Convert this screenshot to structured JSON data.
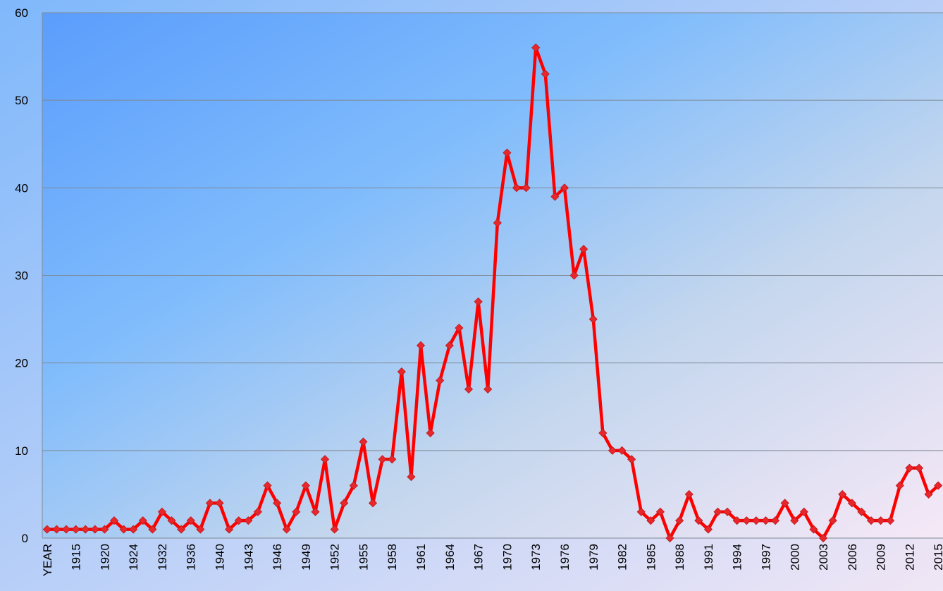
{
  "chart_data": {
    "type": "line",
    "categories": [
      "YEAR",
      null,
      null,
      "1915",
      null,
      null,
      "1920",
      null,
      null,
      "1924",
      null,
      null,
      "1932",
      null,
      null,
      "1936",
      null,
      null,
      "1940",
      null,
      null,
      "1943",
      null,
      null,
      "1946",
      null,
      null,
      "1949",
      null,
      null,
      "1952",
      null,
      null,
      "1955",
      null,
      null,
      "1958",
      null,
      null,
      "1961",
      null,
      null,
      "1964",
      null,
      null,
      "1967",
      null,
      null,
      "1970",
      null,
      null,
      "1973",
      null,
      null,
      "1976",
      null,
      null,
      "1979",
      null,
      null,
      "1982",
      null,
      null,
      "1985",
      null,
      null,
      "1988",
      null,
      null,
      "1991",
      null,
      null,
      "1994",
      null,
      null,
      "1997",
      null,
      null,
      "2000",
      null,
      null,
      "2003",
      null,
      null,
      "2006",
      null,
      null,
      "2009",
      null,
      null,
      "2012",
      null,
      null,
      "2015"
    ],
    "values": [
      1,
      1,
      1,
      1,
      1,
      1,
      1,
      2,
      1,
      1,
      2,
      1,
      3,
      2,
      1,
      2,
      1,
      4,
      4,
      1,
      2,
      2,
      3,
      6,
      4,
      1,
      3,
      6,
      3,
      9,
      1,
      4,
      6,
      11,
      4,
      9,
      9,
      19,
      7,
      22,
      12,
      18,
      22,
      24,
      17,
      27,
      17,
      36,
      44,
      40,
      40,
      56,
      53,
      39,
      40,
      30,
      33,
      25,
      12,
      10,
      10,
      9,
      3,
      2,
      3,
      0,
      2,
      5,
      2,
      1,
      3,
      3,
      2,
      2,
      2,
      2,
      2,
      4,
      2,
      3,
      1,
      0,
      2,
      5,
      4,
      3,
      2,
      2,
      2,
      6,
      8,
      8,
      5,
      6
    ],
    "color": "#ff0000",
    "ylim": [
      0,
      60
    ],
    "yticks": [
      0,
      10,
      20,
      30,
      40,
      50,
      60
    ],
    "grid": true
  }
}
